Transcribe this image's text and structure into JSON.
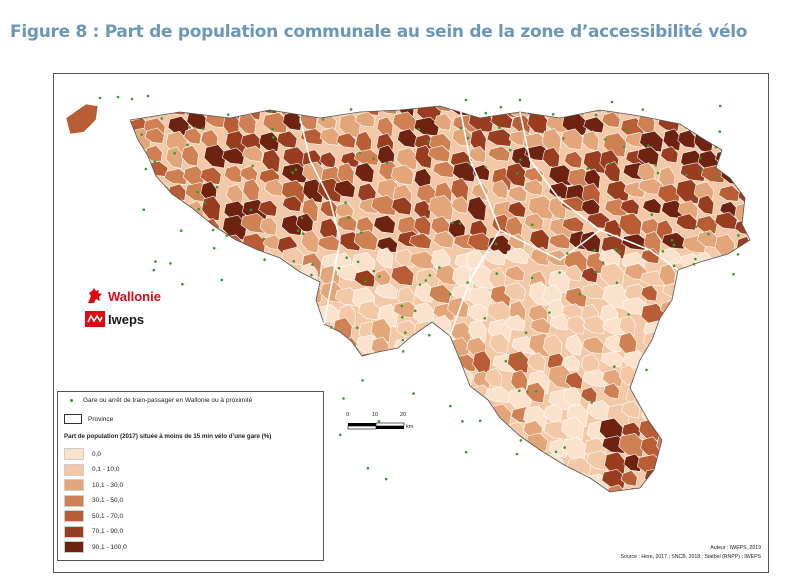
{
  "title": "Figure 8 : Part de population communale au sein de la zone d’accessibilité vélo",
  "logos": {
    "wallonie": "Wallonie",
    "iweps": "Iweps"
  },
  "legend": {
    "station_label": "Gare ou arrêt de train-passager en Wallonie ou à proximité",
    "province_label": "Province",
    "title": "Part de population (2017) située à moins de 15 min vélo d’une gare (%)",
    "classes": [
      {
        "label": "0,0",
        "color": "#fbe2cc"
      },
      {
        "label": "0,1 - 10,0",
        "color": "#f3c8a6"
      },
      {
        "label": "10,1 - 30,0",
        "color": "#e3a67a"
      },
      {
        "label": "30,1 - 50,0",
        "color": "#cf8154"
      },
      {
        "label": "50,1 - 70,0",
        "color": "#b85d35"
      },
      {
        "label": "70,1 - 90,0",
        "color": "#983d1f"
      },
      {
        "label": "90,1 - 100,0",
        "color": "#6e2210"
      }
    ],
    "station_color": "#2f9c2f"
  },
  "scale": {
    "ticks": [
      "0",
      "10",
      "20"
    ],
    "unit": "km"
  },
  "source": {
    "author": "Auteur : IWEPS, 2019",
    "source": "Source : Here, 2017 ; SNCB, 2018 ; Statbel (RNPP) ; IWEPS"
  }
}
